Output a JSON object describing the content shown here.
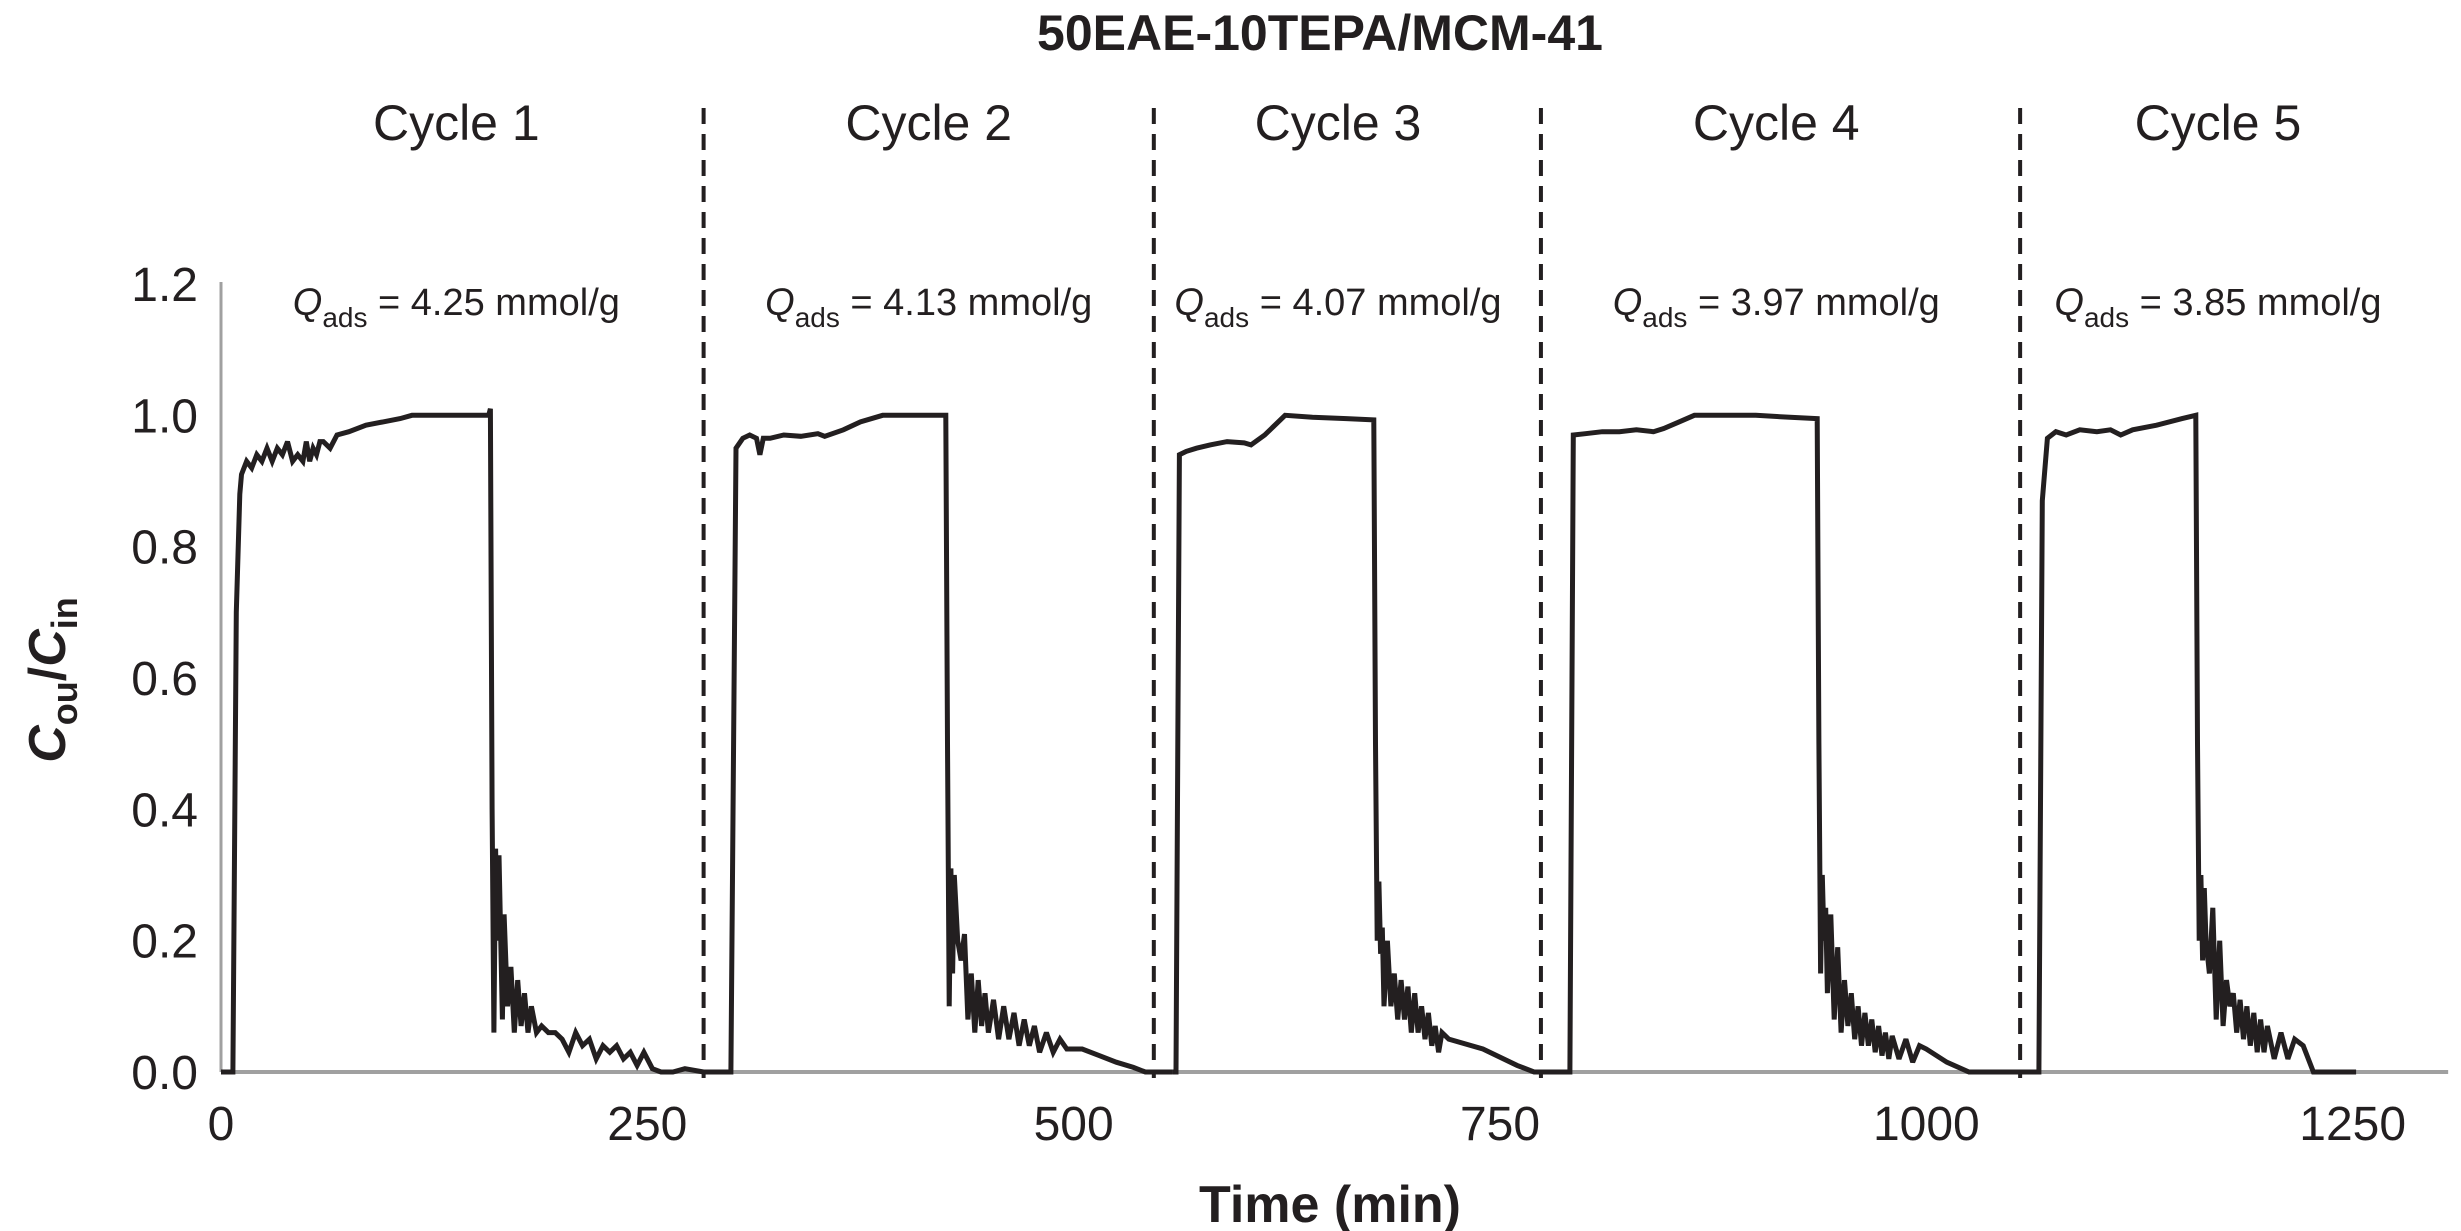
{
  "chart_data": {
    "type": "line",
    "title": "50EAE-10TEPA/MCM-41",
    "xlabel": "Time (min)",
    "ylabel": {
      "main": "C",
      "sub_out": "ou",
      "slash": "/",
      "main2": "C",
      "sub_in": "in"
    },
    "xlim": [
      0,
      1306
    ],
    "ylim": [
      0,
      1.2
    ],
    "x_ticks": [
      0,
      250,
      500,
      750,
      1000,
      1250
    ],
    "x_tick_labels": [
      "0",
      "250",
      "500",
      "750",
      "1000",
      "1250"
    ],
    "y_ticks": [
      0,
      0.2,
      0.4,
      0.6,
      0.8,
      1.0,
      1.2
    ],
    "y_tick_labels": [
      "0.0",
      "0.2",
      "0.4",
      "0.6",
      "0.8",
      "1.0",
      "1.2"
    ],
    "grid": false,
    "line_color": "#231f20",
    "axis_color": "#a0a0a0",
    "cycle_dividers": [
      283,
      547,
      774,
      1055
    ],
    "cycles": [
      {
        "label": "Cycle 1",
        "q_symbol": "Q",
        "q_sub": "ads",
        "q_text": " = 4.25 mmol/g",
        "center_min": 138
      },
      {
        "label": "Cycle 2",
        "q_symbol": "Q",
        "q_sub": "ads",
        "q_text": " = 4.13 mmol/g",
        "center_min": 415
      },
      {
        "label": "Cycle 3",
        "q_symbol": "Q",
        "q_sub": "ads",
        "q_text": " = 4.07 mmol/g",
        "center_min": 655
      },
      {
        "label": "Cycle 4",
        "q_symbol": "Q",
        "q_sub": "ads",
        "q_text": " = 3.97 mmol/g",
        "center_min": 912
      },
      {
        "label": "Cycle 5",
        "q_symbol": "Q",
        "q_sub": "ads",
        "q_text": " = 3.85 mmol/g",
        "center_min": 1171
      }
    ],
    "series": [
      {
        "name": "Cout/Cin",
        "x": [
          0,
          7,
          9,
          11,
          12,
          15,
          18,
          21,
          24,
          27,
          30,
          33,
          36,
          39,
          42,
          45,
          48,
          50,
          52,
          54,
          56,
          58,
          60,
          64,
          68,
          75,
          85,
          95,
          105,
          112,
          120,
          130,
          140,
          150,
          157,
          158,
          159,
          160,
          161,
          162,
          163,
          165,
          166,
          168,
          170,
          172,
          174,
          176,
          178,
          180,
          182,
          185,
          188,
          192,
          196,
          200,
          204,
          208,
          212,
          216,
          220,
          224,
          228,
          232,
          236,
          240,
          244,
          248,
          253,
          258,
          265,
          272,
          283,
          297
        ],
        "y": [
          0,
          0,
          0.7,
          0.88,
          0.91,
          0.93,
          0.92,
          0.94,
          0.93,
          0.95,
          0.93,
          0.95,
          0.94,
          0.96,
          0.93,
          0.94,
          0.93,
          0.96,
          0.93,
          0.95,
          0.94,
          0.96,
          0.96,
          0.95,
          0.97,
          0.975,
          0.985,
          0.99,
          0.995,
          1.0,
          1.0,
          1.0,
          1.0,
          1.0,
          1.0,
          1.01,
          0.4,
          0.06,
          0.34,
          0.2,
          0.33,
          0.08,
          0.24,
          0.1,
          0.16,
          0.06,
          0.14,
          0.07,
          0.12,
          0.06,
          0.1,
          0.06,
          0.07,
          0.06,
          0.06,
          0.05,
          0.03,
          0.06,
          0.04,
          0.05,
          0.02,
          0.04,
          0.03,
          0.04,
          0.02,
          0.03,
          0.01,
          0.03,
          0.005,
          0.0,
          0.0,
          0.005,
          0.0,
          0.0
        ]
      },
      {
        "name": "Cout/Cin",
        "x": [
          297,
          299,
          302,
          306,
          310,
          314,
          316,
          318,
          322,
          330,
          340,
          350,
          354,
          365,
          375,
          388,
          400,
          412,
          425,
          426,
          427,
          428,
          429,
          430,
          432,
          434,
          436,
          438,
          440,
          442,
          444,
          446,
          448,
          450,
          453,
          456,
          459,
          462,
          465,
          468,
          471,
          474,
          477,
          480,
          484,
          488,
          492,
          496,
          505,
          515,
          525,
          535,
          542,
          558
        ],
        "y": [
          0,
          0,
          0.95,
          0.965,
          0.97,
          0.965,
          0.94,
          0.965,
          0.965,
          0.97,
          0.968,
          0.972,
          0.968,
          0.978,
          0.99,
          1.0,
          1.0,
          1.0,
          1.0,
          0.5,
          0.1,
          0.31,
          0.15,
          0.3,
          0.2,
          0.17,
          0.21,
          0.08,
          0.15,
          0.06,
          0.14,
          0.07,
          0.12,
          0.06,
          0.11,
          0.05,
          0.1,
          0.05,
          0.09,
          0.04,
          0.08,
          0.04,
          0.07,
          0.03,
          0.06,
          0.03,
          0.05,
          0.035,
          0.035,
          0.025,
          0.015,
          0.007,
          0.0,
          0.0
        ]
      },
      {
        "name": "Cout/Cin",
        "x": [
          558,
          560,
          562,
          566,
          572,
          580,
          590,
          600,
          604,
          612,
          624,
          640,
          660,
          676,
          677,
          678,
          679,
          680,
          681,
          682,
          684,
          686,
          688,
          690,
          692,
          694,
          696,
          698,
          700,
          702,
          704,
          706,
          708,
          710,
          712,
          714,
          716,
          720,
          740,
          760,
          770,
          789
        ],
        "y": [
          0,
          0,
          0.94,
          0.945,
          0.95,
          0.955,
          0.96,
          0.958,
          0.955,
          0.97,
          1.0,
          0.997,
          0.995,
          0.993,
          0.5,
          0.2,
          0.29,
          0.18,
          0.22,
          0.1,
          0.2,
          0.1,
          0.15,
          0.08,
          0.14,
          0.08,
          0.13,
          0.06,
          0.12,
          0.06,
          0.1,
          0.05,
          0.09,
          0.04,
          0.07,
          0.03,
          0.06,
          0.05,
          0.035,
          0.01,
          0.0,
          0.0
        ]
      },
      {
        "name": "Cout/Cin",
        "x": [
          789,
          791,
          793,
          800,
          810,
          820,
          830,
          840,
          846,
          855,
          864,
          880,
          900,
          920,
          936,
          937,
          938,
          939,
          940,
          941,
          942,
          944,
          946,
          948,
          950,
          952,
          954,
          956,
          958,
          960,
          962,
          964,
          966,
          968,
          970,
          972,
          974,
          976,
          978,
          980,
          984,
          988,
          992,
          996,
          1000,
          1012,
          1025,
          1064
        ],
        "y": [
          0,
          0,
          0.97,
          0.972,
          0.975,
          0.975,
          0.978,
          0.975,
          0.98,
          0.99,
          1.0,
          1.0,
          1.0,
          0.997,
          0.995,
          0.5,
          0.15,
          0.3,
          0.2,
          0.25,
          0.12,
          0.24,
          0.08,
          0.19,
          0.06,
          0.14,
          0.07,
          0.12,
          0.05,
          0.1,
          0.04,
          0.09,
          0.04,
          0.08,
          0.03,
          0.07,
          0.025,
          0.06,
          0.02,
          0.055,
          0.02,
          0.05,
          0.015,
          0.04,
          0.035,
          0.015,
          0.0,
          0.0
        ]
      },
      {
        "name": "Cout/Cin",
        "x": [
          1064,
          1066,
          1068,
          1071,
          1076,
          1082,
          1090,
          1100,
          1108,
          1114,
          1121,
          1135,
          1150,
          1158,
          1159,
          1160,
          1161,
          1162,
          1163,
          1164,
          1166,
          1168,
          1170,
          1172,
          1174,
          1176,
          1178,
          1180,
          1182,
          1184,
          1186,
          1188,
          1190,
          1192,
          1194,
          1196,
          1198,
          1200,
          1204,
          1208,
          1212,
          1216,
          1221,
          1227,
          1252
        ],
        "y": [
          0,
          0,
          0.87,
          0.965,
          0.975,
          0.97,
          0.978,
          0.975,
          0.978,
          0.97,
          0.978,
          0.985,
          0.995,
          1.0,
          0.5,
          0.2,
          0.3,
          0.17,
          0.28,
          0.2,
          0.15,
          0.25,
          0.08,
          0.2,
          0.07,
          0.14,
          0.1,
          0.12,
          0.06,
          0.11,
          0.05,
          0.1,
          0.04,
          0.09,
          0.03,
          0.08,
          0.03,
          0.07,
          0.02,
          0.06,
          0.02,
          0.05,
          0.04,
          0.0,
          0.0
        ]
      }
    ]
  }
}
